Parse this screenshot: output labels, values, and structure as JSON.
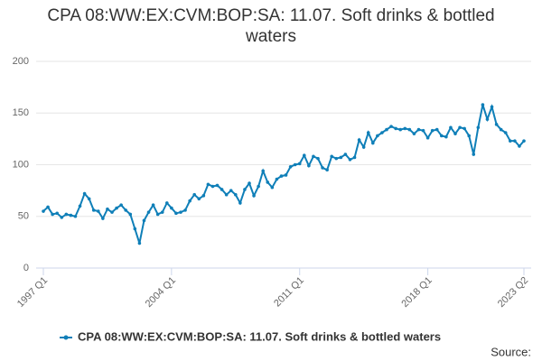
{
  "chart_data": {
    "type": "line",
    "title": "CPA 08:WW:EX:CVM:BOP:SA: 11.07. Soft drinks & bottled waters",
    "categories": [
      "1997 Q1",
      null,
      null,
      null,
      null,
      null,
      null,
      null,
      null,
      null,
      null,
      null,
      null,
      null,
      null,
      null,
      null,
      null,
      null,
      null,
      null,
      null,
      null,
      null,
      null,
      null,
      null,
      null,
      "2004 Q1",
      null,
      null,
      null,
      null,
      null,
      null,
      null,
      null,
      null,
      null,
      null,
      null,
      null,
      null,
      null,
      null,
      null,
      null,
      null,
      null,
      null,
      null,
      null,
      null,
      null,
      null,
      null,
      "2011 Q1",
      null,
      null,
      null,
      null,
      null,
      null,
      null,
      null,
      null,
      null,
      null,
      null,
      null,
      null,
      null,
      null,
      null,
      null,
      null,
      null,
      null,
      null,
      null,
      null,
      null,
      null,
      null,
      "2018 Q1",
      null,
      null,
      null,
      null,
      null,
      null,
      null,
      null,
      null,
      null,
      null,
      null,
      null,
      null,
      null,
      null,
      null,
      null,
      null,
      null,
      "2023 Q2"
    ],
    "series": [
      {
        "name": "CPA 08:WW:EX:CVM:BOP:SA: 11.07. Soft drinks & bottled waters",
        "color": "#0f7fb8",
        "values": [
          55,
          59,
          52,
          53,
          49,
          52,
          51,
          50,
          60,
          72,
          67,
          56,
          55,
          48,
          57,
          54,
          58,
          61,
          56,
          52,
          38,
          24,
          46,
          54,
          61,
          52,
          54,
          63,
          58,
          53,
          54,
          56,
          65,
          71,
          67,
          70,
          81,
          79,
          80,
          76,
          71,
          75,
          71,
          63,
          76,
          82,
          70,
          79,
          94,
          83,
          78,
          86,
          89,
          90,
          98,
          100,
          101,
          109,
          99,
          108,
          106,
          97,
          95,
          108,
          106,
          107,
          110,
          105,
          107,
          124,
          117,
          131,
          121,
          128,
          131,
          134,
          137,
          135,
          134,
          135,
          134,
          130,
          134,
          133,
          126,
          133,
          134,
          128,
          127,
          136,
          130,
          136,
          135,
          128,
          110,
          136,
          158,
          144,
          156,
          139,
          134,
          131,
          123,
          123,
          118,
          123
        ]
      }
    ],
    "ylim": [
      0,
      200
    ],
    "yticks": [
      0,
      50,
      100,
      150,
      200
    ],
    "grid": true,
    "legend": "bottom",
    "source": "Source:"
  }
}
